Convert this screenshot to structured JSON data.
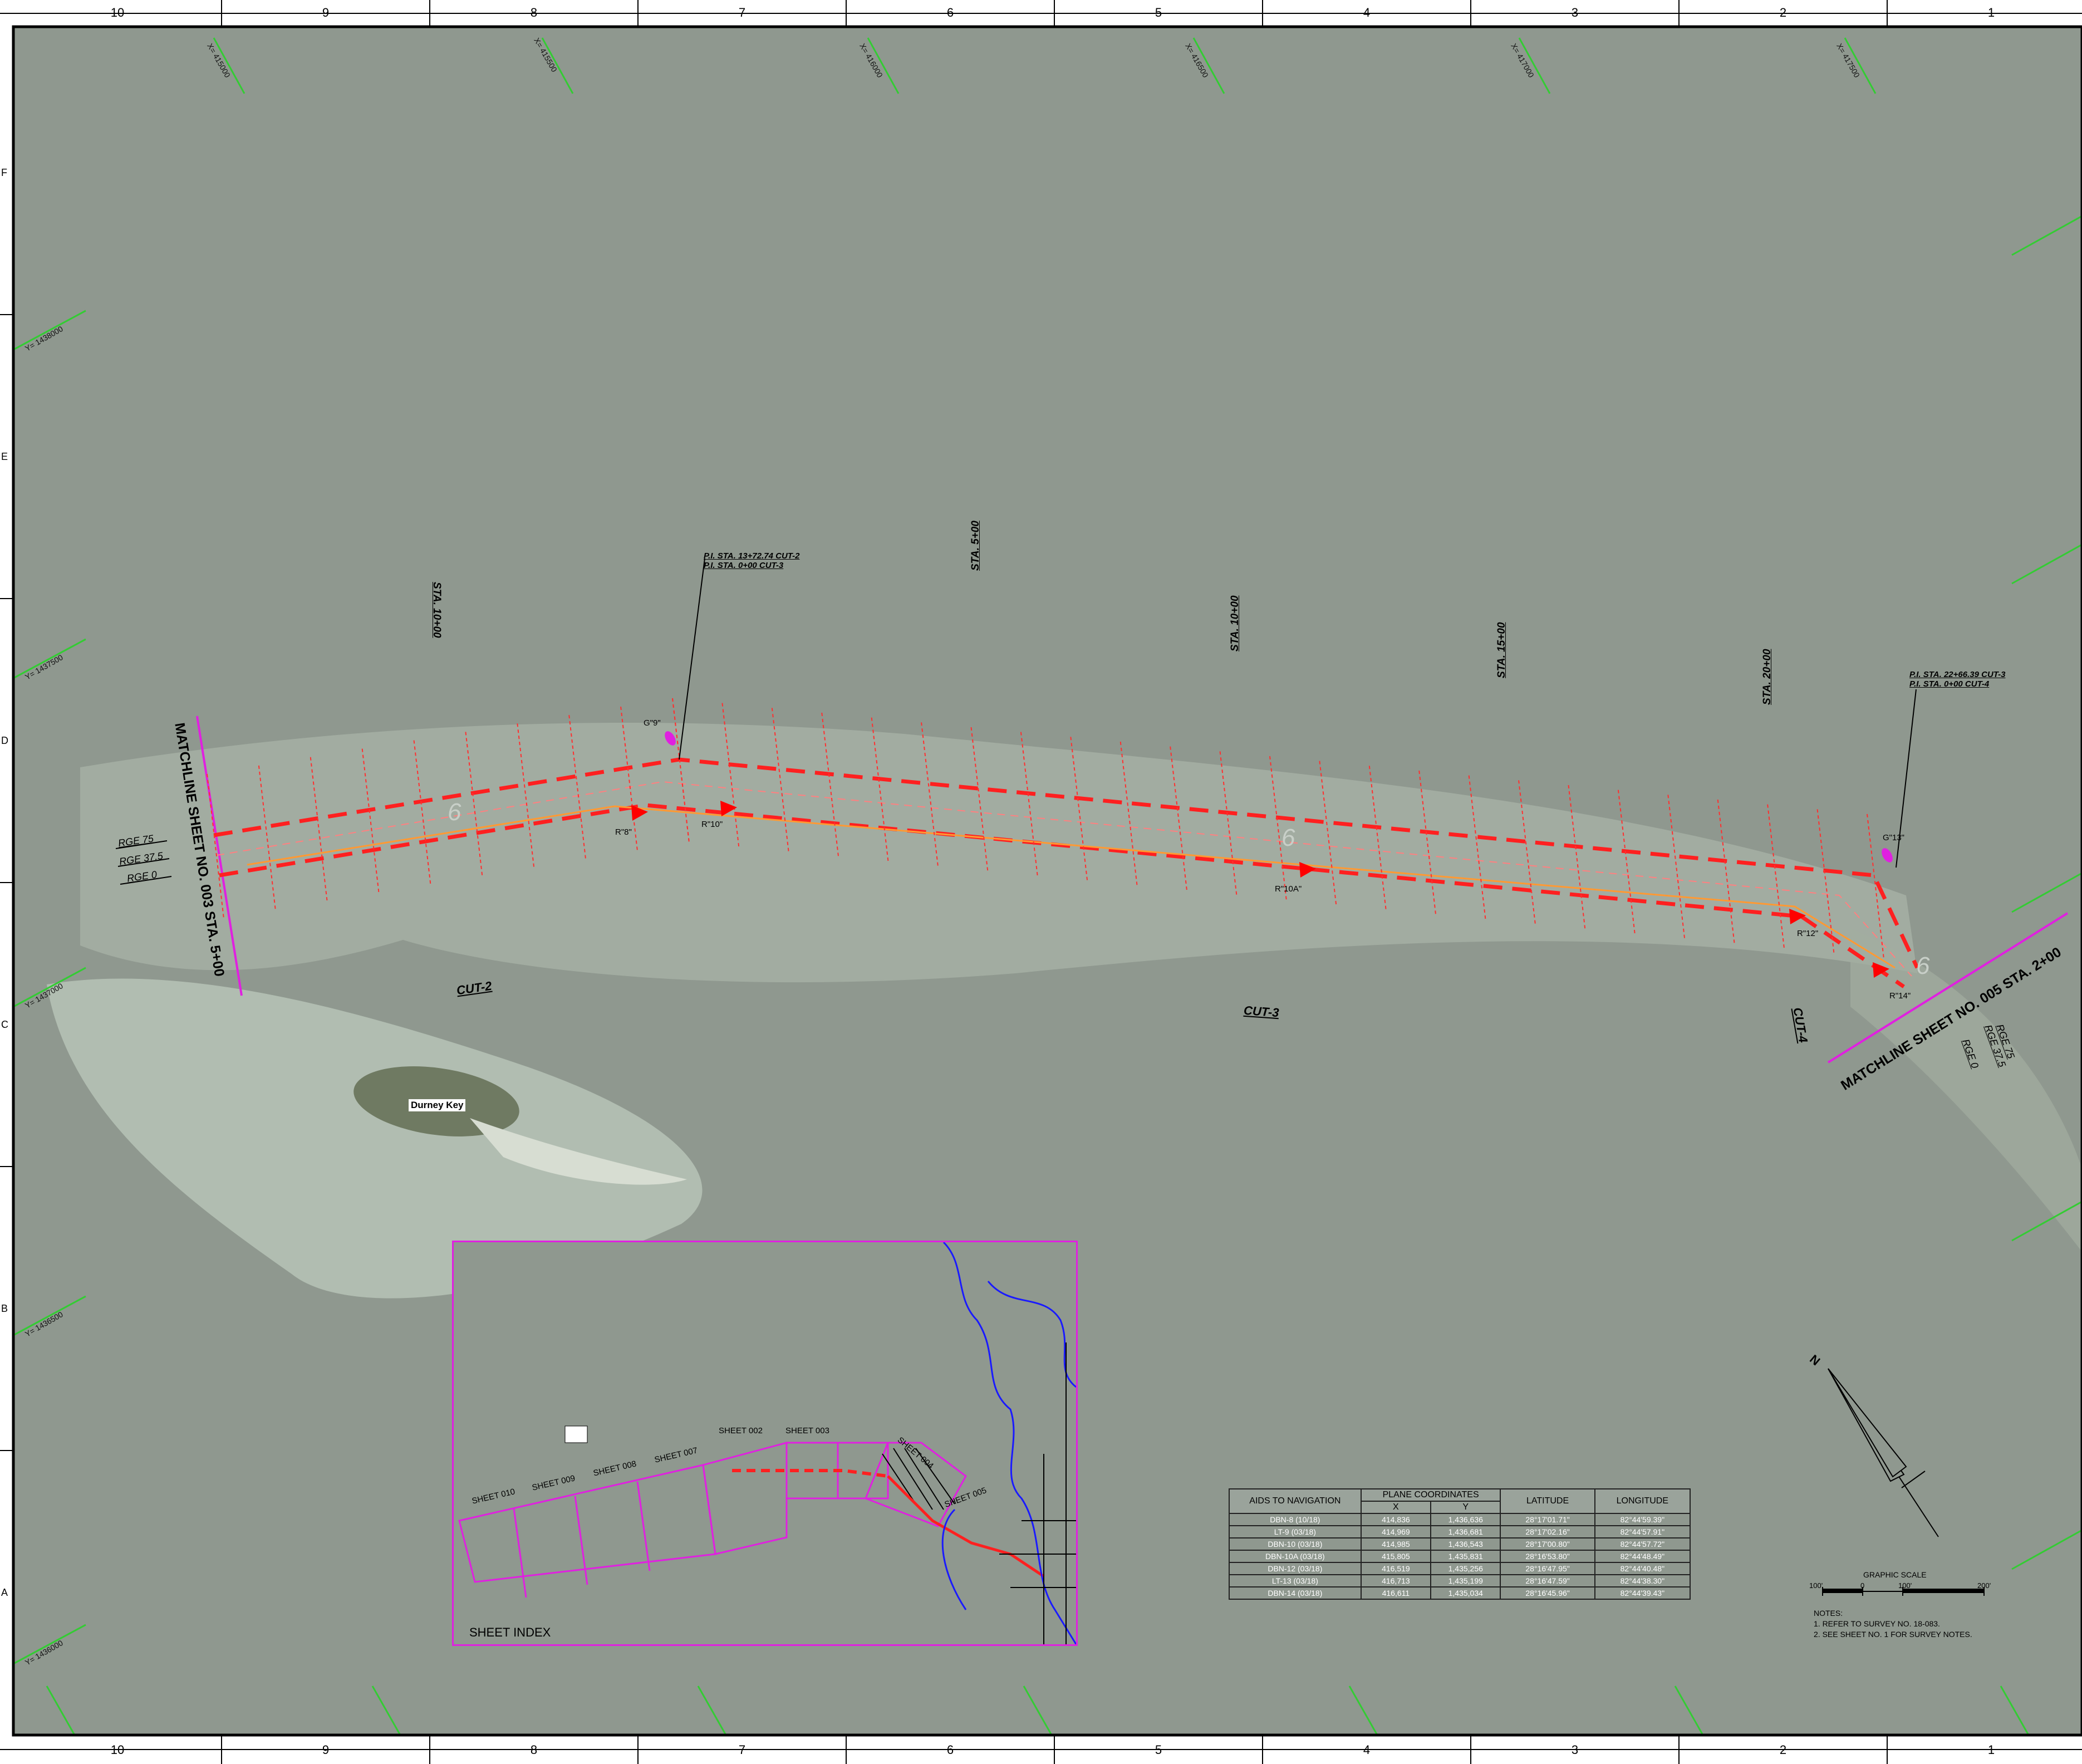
{
  "border": {
    "columns": [
      "10",
      "9",
      "8",
      "7",
      "6",
      "5",
      "4",
      "3",
      "2",
      "1"
    ],
    "rows": [
      "F",
      "E",
      "D",
      "C",
      "B",
      "A"
    ]
  },
  "colors": {
    "background": "#8f988f",
    "channel": "#ff2020",
    "station_marks": "#ff3030",
    "depths_blue": "#3a4cff",
    "sheet_index": "#e020e0",
    "coord_ticks": "#33cc33",
    "shoals": "#b9c7b9"
  },
  "coordinates": {
    "x_ticks": [
      "X= 415000",
      "X= 415500",
      "X= 416000",
      "X= 416500",
      "X= 417000",
      "X= 417500"
    ],
    "y_ticks": [
      "Y= 1438000",
      "Y= 1437500",
      "Y= 1437000",
      "Y= 1436500",
      "Y= 1436000"
    ]
  },
  "stations": [
    "STA. 10+00",
    "STA. 5+00",
    "STA. 10+00",
    "STA. 15+00",
    "STA. 20+00"
  ],
  "pi_labels": {
    "left": [
      "P.I. STA. 13+72.74 CUT-2",
      "P.I. STA. 0+00 CUT-3"
    ],
    "right": [
      "P.I. STA. 22+66.39 CUT-3",
      "P.I. STA. 0+00 CUT-4"
    ]
  },
  "matchlines": {
    "left": "MATCHLINE SHEET NO. 003 STA. 5+00",
    "right": "MATCHLINE SHEET NO. 005 STA. 2+00"
  },
  "ranges": {
    "left": [
      "RGE 75",
      "RGE 37.5",
      "RGE 0"
    ],
    "right": [
      "RGE 75",
      "RGE 37.5",
      "RGE 0"
    ]
  },
  "cuts": [
    "CUT-2",
    "CUT-3",
    "CUT-4"
  ],
  "markers": [
    "R\"8\"",
    "R\"10\"",
    "R\"10A\"",
    "R\"12\"",
    "R\"14\""
  ],
  "beacons": [
    "G\"9\"",
    "G\"13\""
  ],
  "island": "Durney Key",
  "sheet_index": {
    "title": "SHEET INDEX",
    "sheets": [
      "SHEET 010",
      "SHEET 009",
      "SHEET 008",
      "SHEET 007",
      "SHEET 002",
      "SHEET 003",
      "SHEET 004",
      "SHEET 005"
    ]
  },
  "aids_table": {
    "headers": [
      "AIDS TO NAVIGATION",
      "PLANE COORDINATES",
      "LATITUDE",
      "LONGITUDE"
    ],
    "subheaders": [
      "X",
      "Y"
    ],
    "rows": [
      [
        "DBN-8 (10/18)",
        "414,836",
        "1,436,636",
        "28°17'01.71\"",
        "82°44'59.39\""
      ],
      [
        "LT-9 (03/18)",
        "414,969",
        "1,436,681",
        "28°17'02.16\"",
        "82°44'57.91\""
      ],
      [
        "DBN-10 (03/18)",
        "414,985",
        "1,436,543",
        "28°17'00.80\"",
        "82°44'57.72\""
      ],
      [
        "DBN-10A (03/18)",
        "415,805",
        "1,435,831",
        "28°16'53.80\"",
        "82°44'48.49\""
      ],
      [
        "DBN-12 (03/18)",
        "416,519",
        "1,435,256",
        "28°16'47.95\"",
        "82°44'40.48\""
      ],
      [
        "LT-13 (03/18)",
        "416,713",
        "1,435,199",
        "28°16'47.59\"",
        "82°44'38.30\""
      ],
      [
        "DBN-14 (03/18)",
        "416,611",
        "1,435,034",
        "28°16'45.96\"",
        "82°44'39.43\""
      ]
    ]
  },
  "graphic_scale": {
    "title": "GRAPHIC SCALE",
    "ticks": [
      "100'",
      "0",
      "100'",
      "200'"
    ]
  },
  "notes": [
    "NOTES:",
    "1. REFER TO SURVEY NO. 18-083.",
    "2. SEE SHEET NO. 1 FOR SURVEY NOTES."
  ],
  "channel_depth_marks": [
    "6",
    "6",
    "6"
  ],
  "north_arrow": "N"
}
